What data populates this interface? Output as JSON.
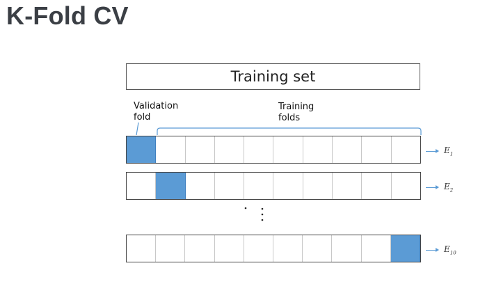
{
  "header": {
    "title": "K-Fold CV"
  },
  "diagram": {
    "training_set_label": "Training set",
    "validation_label_line1": "Validation",
    "validation_label_line2": "fold",
    "training_label_line1": "Training",
    "training_label_line2": "folds",
    "folds_per_row": 10,
    "rows": [
      {
        "validation_index": 0,
        "error_base": "E",
        "error_sub": "1"
      },
      {
        "validation_index": 1,
        "error_base": "E",
        "error_sub": "2"
      },
      {
        "validation_index": 9,
        "error_base": "E",
        "error_sub": "10"
      }
    ],
    "colors": {
      "validation": "#5b9bd5",
      "bracket": "#5b9bd5",
      "arrow": "#5b9bd5"
    }
  }
}
